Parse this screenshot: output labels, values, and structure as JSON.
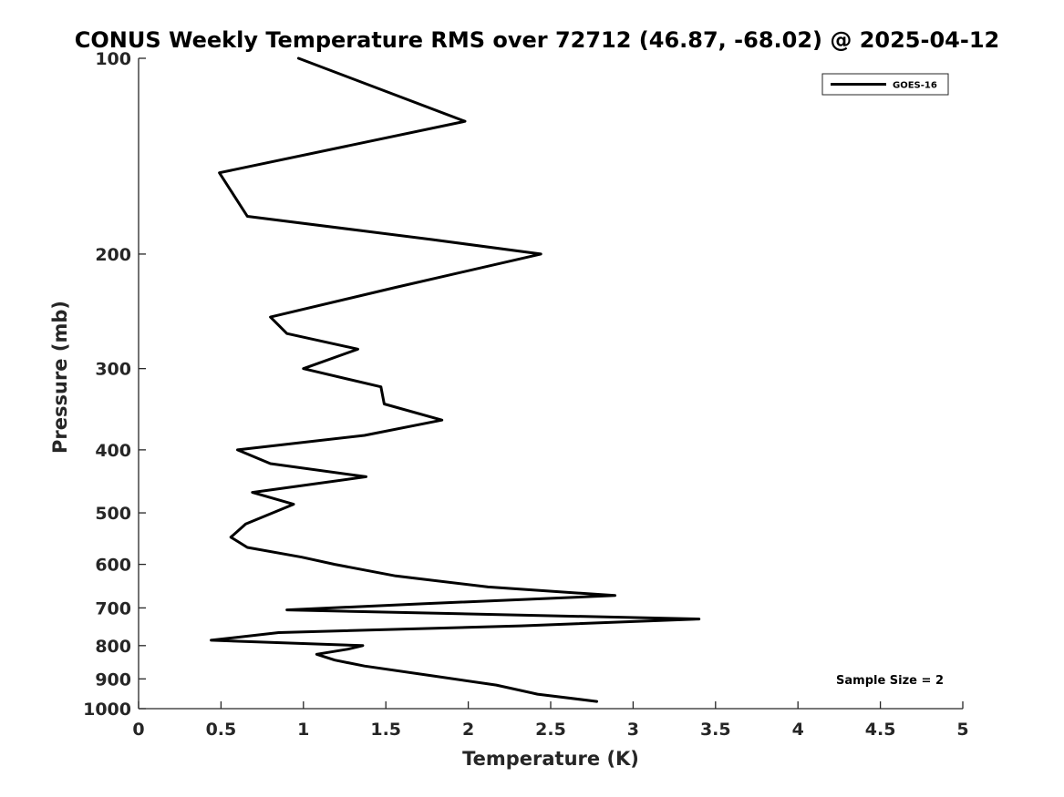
{
  "chart_data": {
    "type": "line",
    "title": "CONUS Weekly Temperature RMS over 72712 (46.87, -68.02) @ 2025-04-12",
    "xlabel": "Temperature (K)",
    "ylabel": "Pressure (mb)",
    "xlim": [
      0,
      5
    ],
    "ylim": [
      100,
      1000
    ],
    "y_scale": "log",
    "y_reversed": true,
    "grid": false,
    "legend_position": "top-right",
    "x_ticks": [
      0,
      0.5,
      1,
      1.5,
      2,
      2.5,
      3,
      3.5,
      4,
      4.5,
      5
    ],
    "x_tick_labels": [
      "0",
      "0.5",
      "1",
      "1.5",
      "2",
      "2.5",
      "3",
      "3.5",
      "4",
      "4.5",
      "5"
    ],
    "y_ticks": [
      100,
      200,
      300,
      400,
      500,
      600,
      700,
      800,
      900,
      1000
    ],
    "y_tick_labels": [
      "100",
      "200",
      "300",
      "400",
      "500",
      "600",
      "700",
      "800",
      "900",
      "1000"
    ],
    "series": [
      {
        "name": "GOES-16",
        "color": "#000000",
        "points": [
          [
            0.97,
            100
          ],
          [
            1.98,
            125
          ],
          [
            0.49,
            150
          ],
          [
            0.66,
            175
          ],
          [
            1.78,
            190
          ],
          [
            2.44,
            200
          ],
          [
            1.56,
            225
          ],
          [
            0.8,
            250
          ],
          [
            0.9,
            265
          ],
          [
            1.33,
            280
          ],
          [
            1.0,
            300
          ],
          [
            1.47,
            320
          ],
          [
            1.49,
            340
          ],
          [
            1.84,
            360
          ],
          [
            1.37,
            380
          ],
          [
            0.6,
            400
          ],
          [
            0.8,
            420
          ],
          [
            1.38,
            440
          ],
          [
            0.69,
            465
          ],
          [
            0.94,
            485
          ],
          [
            0.65,
            520
          ],
          [
            0.56,
            545
          ],
          [
            0.66,
            565
          ],
          [
            0.99,
            585
          ],
          [
            1.19,
            600
          ],
          [
            1.56,
            625
          ],
          [
            2.12,
            650
          ],
          [
            2.89,
            670
          ],
          [
            1.72,
            690
          ],
          [
            0.9,
            705
          ],
          [
            3.4,
            728
          ],
          [
            2.32,
            746
          ],
          [
            0.85,
            764
          ],
          [
            0.44,
            785
          ],
          [
            1.36,
            800
          ],
          [
            1.27,
            810
          ],
          [
            1.08,
            825
          ],
          [
            1.19,
            842
          ],
          [
            1.37,
            860
          ],
          [
            1.78,
            890
          ],
          [
            2.17,
            920
          ],
          [
            2.42,
            950
          ],
          [
            2.78,
            975
          ]
        ]
      }
    ],
    "annotations": [
      "Sample Size = 2"
    ]
  }
}
